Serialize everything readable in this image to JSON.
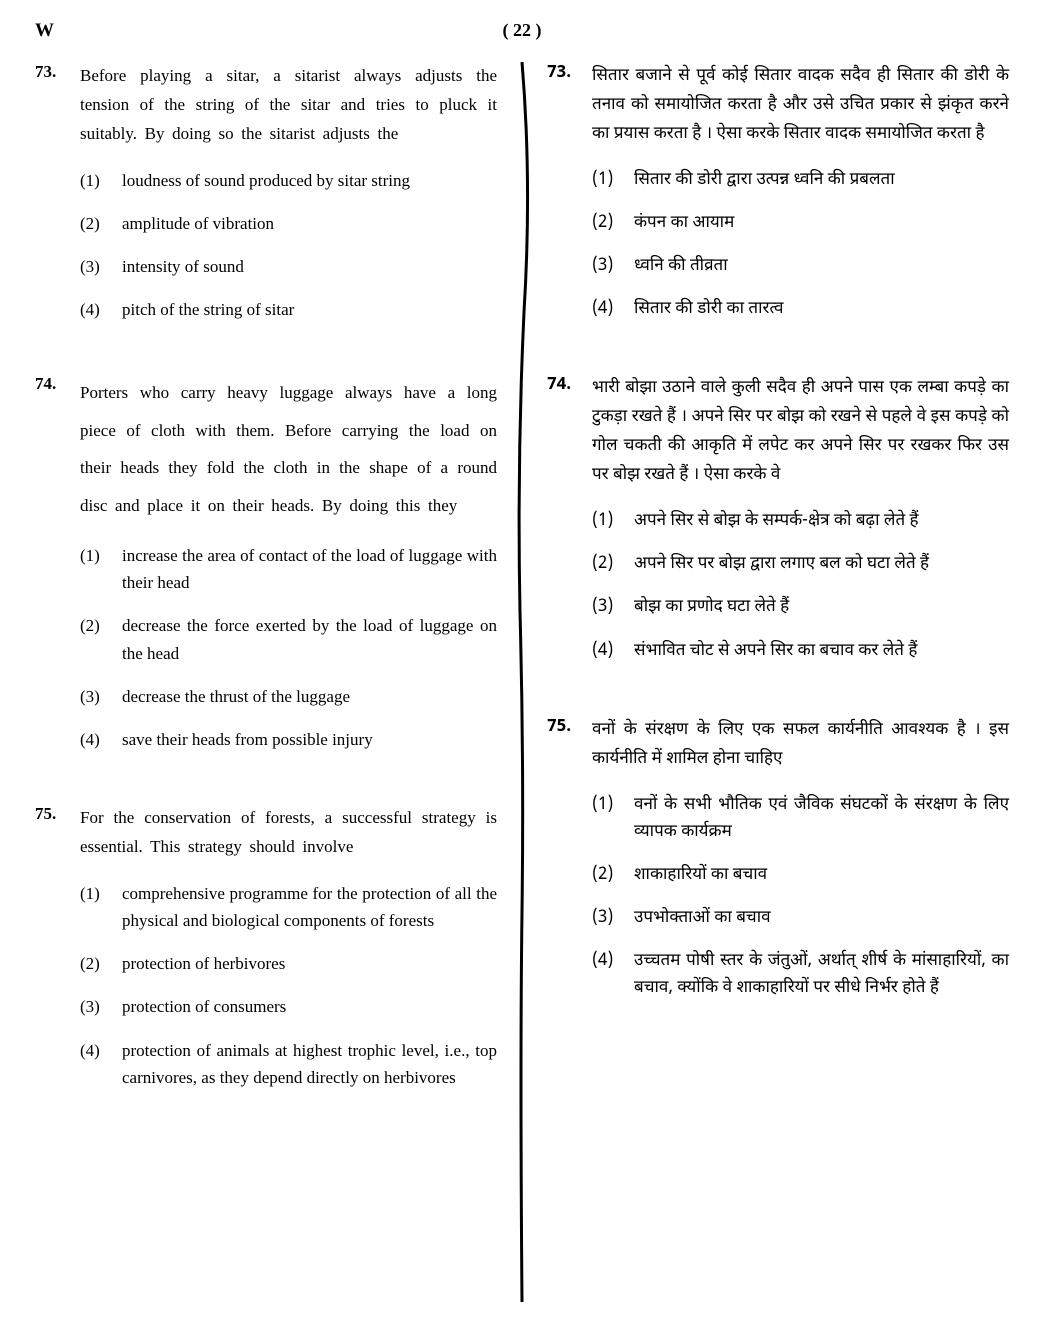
{
  "header": {
    "left": "W",
    "center": "( 22 )"
  },
  "left_column": {
    "questions": [
      {
        "num": "73.",
        "text": "Before playing a sitar, a sitarist always adjusts the tension of the string of the sitar and tries to pluck it suitably. By doing so the sitarist adjusts the",
        "spaced": false,
        "options": [
          {
            "num": "(1)",
            "text": "loudness of sound produced by sitar string"
          },
          {
            "num": "(2)",
            "text": "amplitude of vibration"
          },
          {
            "num": "(3)",
            "text": "intensity of sound"
          },
          {
            "num": "(4)",
            "text": "pitch of the string of sitar"
          }
        ]
      },
      {
        "num": "74.",
        "text": "Porters who carry heavy luggage always have a long piece of cloth with them. Before carrying the load on their heads they fold the cloth in the shape of a round disc and place it on their heads. By doing this they",
        "spaced": true,
        "options": [
          {
            "num": "(1)",
            "text": "increase the area of contact of the load of luggage with their head"
          },
          {
            "num": "(2)",
            "text": "decrease the force exerted by the load of luggage on the head"
          },
          {
            "num": "(3)",
            "text": "decrease the thrust of the luggage"
          },
          {
            "num": "(4)",
            "text": "save their heads from possible injury"
          }
        ]
      },
      {
        "num": "75.",
        "text": "For the conservation of forests, a successful strategy is essential. This strategy should involve",
        "spaced": false,
        "options": [
          {
            "num": "(1)",
            "text": "comprehensive programme for the protection of all the physical and biological components of forests"
          },
          {
            "num": "(2)",
            "text": "protection of herbivores"
          },
          {
            "num": "(3)",
            "text": "protection of consumers"
          },
          {
            "num": "(4)",
            "text": "protection of animals at highest trophic level, i.e., top carnivores, as they depend directly on herbivores"
          }
        ]
      }
    ]
  },
  "right_column": {
    "questions": [
      {
        "num": "73.",
        "text": "सितार बजाने से पूर्व कोई सितार वादक सदैव ही सितार की डोरी के तनाव को समायोजित करता है और उसे उचित प्रकार से झंकृत करने का प्रयास करता है । ऐसा करके सितार वादक समायोजित करता है",
        "options": [
          {
            "num": "(1)",
            "text": "सितार की डोरी द्वारा उत्पन्न ध्वनि की प्रबलता"
          },
          {
            "num": "(2)",
            "text": "कंपन का आयाम"
          },
          {
            "num": "(3)",
            "text": "ध्वनि की तीव्रता"
          },
          {
            "num": "(4)",
            "text": "सितार की डोरी का तारत्व"
          }
        ]
      },
      {
        "num": "74.",
        "text": "भारी बोझा उठाने वाले कुली सदैव ही अपने पास एक लम्बा कपड़े का टुकड़ा रखते हैं । अपने सिर पर बोझ को रखने से पहले वे इस कपड़े को गोल चकती की आकृति में लपेट कर अपने सिर पर रखकर फिर उस पर बोझ रखते हैं । ऐसा करके वे",
        "options": [
          {
            "num": "(1)",
            "text": "अपने सिर से बोझ के सम्पर्क-क्षेत्र को बढ़ा लेते हैं"
          },
          {
            "num": "(2)",
            "text": "अपने सिर पर बोझ द्वारा लगाए बल को घटा लेते हैं"
          },
          {
            "num": "(3)",
            "text": "बोझ का प्रणोद घटा लेते हैं"
          },
          {
            "num": "(4)",
            "text": "संभावित चोट से अपने सिर का बचाव कर लेते हैं"
          }
        ]
      },
      {
        "num": "75.",
        "text": "वनों के संरक्षण के लिए एक सफल कार्यनीति आवश्यक है । इस कार्यनीति में शामिल होना चाहिए",
        "options": [
          {
            "num": "(1)",
            "text": "वनों के सभी भौतिक एवं जैविक संघटकों के संरक्षण के लिए व्यापक कार्यक्रम"
          },
          {
            "num": "(2)",
            "text": "शाकाहारियों का बचाव"
          },
          {
            "num": "(3)",
            "text": "उपभोक्ताओं का बचाव"
          },
          {
            "num": "(4)",
            "text": "उच्चतम पोषी स्तर के जंतुओं, अर्थात् शीर्ष के मांसाहारियों, का बचाव, क्योंकि वे शाकाहारियों पर सीधे निर्भर होते हैं"
          }
        ]
      }
    ]
  }
}
